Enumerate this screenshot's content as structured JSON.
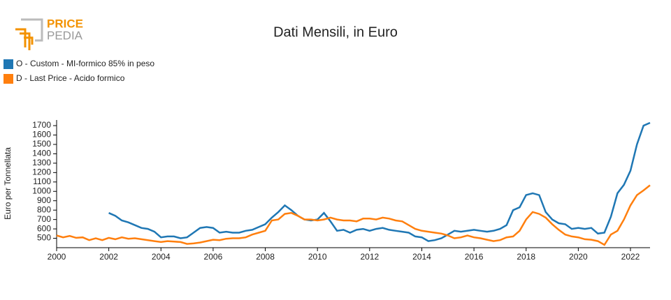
{
  "logo": {
    "top": "PRICE",
    "bottom": "PEDIA"
  },
  "chart_data": {
    "type": "line",
    "title": "Dati Mensili, in Euro",
    "y_label": "Euro per Tonnellata",
    "x": [
      2000,
      2000.25,
      2000.5,
      2000.75,
      2001,
      2001.25,
      2001.5,
      2001.75,
      2002,
      2002.25,
      2002.5,
      2002.75,
      2003,
      2003.25,
      2003.5,
      2003.75,
      2004,
      2004.25,
      2004.5,
      2004.75,
      2005,
      2005.25,
      2005.5,
      2005.75,
      2006,
      2006.25,
      2006.5,
      2006.75,
      2007,
      2007.25,
      2007.5,
      2007.75,
      2008,
      2008.25,
      2008.5,
      2008.75,
      2009,
      2009.25,
      2009.5,
      2009.75,
      2010,
      2010.25,
      2010.5,
      2010.75,
      2011,
      2011.25,
      2011.5,
      2011.75,
      2012,
      2012.25,
      2012.5,
      2012.75,
      2013,
      2013.25,
      2013.5,
      2013.75,
      2014,
      2014.25,
      2014.5,
      2014.75,
      2015,
      2015.25,
      2015.5,
      2015.75,
      2016,
      2016.25,
      2016.5,
      2016.75,
      2017,
      2017.25,
      2017.5,
      2017.75,
      2018,
      2018.25,
      2018.5,
      2018.75,
      2019,
      2019.25,
      2019.5,
      2019.75,
      2020,
      2020.25,
      2020.5,
      2020.75,
      2021,
      2021.25,
      2021.5,
      2021.75,
      2022,
      2022.25,
      2022.5,
      2022.75
    ],
    "series": [
      {
        "name": "O - Custom - MI-formico 85% in peso",
        "color": "#1f77b4",
        "values": [
          null,
          null,
          null,
          null,
          null,
          null,
          null,
          null,
          770,
          740,
          690,
          670,
          640,
          610,
          600,
          570,
          510,
          520,
          520,
          500,
          510,
          560,
          610,
          620,
          610,
          560,
          570,
          560,
          560,
          580,
          590,
          620,
          650,
          720,
          780,
          850,
          800,
          740,
          700,
          690,
          700,
          770,
          680,
          580,
          590,
          560,
          590,
          600,
          580,
          600,
          610,
          590,
          580,
          570,
          560,
          520,
          510,
          470,
          480,
          500,
          540,
          580,
          570,
          580,
          590,
          580,
          570,
          580,
          600,
          640,
          800,
          830,
          960,
          980,
          960,
          780,
          700,
          660,
          650,
          600,
          610,
          600,
          610,
          550,
          560,
          730,
          980,
          1070,
          1220,
          1500,
          1700,
          1730
        ]
      },
      {
        "name": "D - Last Price - Acido formico",
        "color": "#ff7f0e",
        "values": [
          530,
          510,
          525,
          505,
          510,
          480,
          500,
          480,
          505,
          490,
          510,
          495,
          500,
          490,
          480,
          470,
          460,
          470,
          465,
          460,
          440,
          445,
          455,
          470,
          485,
          480,
          495,
          500,
          500,
          510,
          540,
          560,
          580,
          690,
          700,
          760,
          770,
          740,
          700,
          700,
          690,
          700,
          720,
          700,
          690,
          690,
          680,
          710,
          710,
          700,
          720,
          710,
          690,
          680,
          640,
          600,
          580,
          570,
          560,
          550,
          530,
          500,
          510,
          530,
          510,
          500,
          485,
          470,
          480,
          510,
          520,
          580,
          700,
          780,
          760,
          720,
          650,
          590,
          540,
          520,
          510,
          490,
          485,
          470,
          430,
          540,
          580,
          700,
          850,
          960,
          1010,
          1065
        ]
      }
    ],
    "xlim": [
      2000,
      2022.75
    ],
    "xticks": [
      2000,
      2002,
      2004,
      2006,
      2008,
      2010,
      2012,
      2014,
      2016,
      2018,
      2020,
      2022
    ],
    "ylim": [
      400,
      1760
    ],
    "yticks": [
      500,
      600,
      700,
      800,
      900,
      1000,
      1100,
      1200,
      1300,
      1400,
      1500,
      1600,
      1700
    ],
    "legend": "top-left"
  }
}
